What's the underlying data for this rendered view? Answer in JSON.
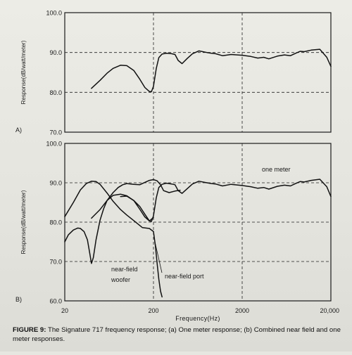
{
  "figure": {
    "caption_label": "FIGURE 9:",
    "caption_text": "The Signature 717 frequency response; (a) One meter response; (b) Combined near field and one meter responses."
  },
  "chart_data": [
    {
      "type": "line",
      "panel_label": "A)",
      "ylabel": "Response(dB/watt/meter)",
      "ylim": [
        70,
        100
      ],
      "yticks": [
        "100.0",
        "90.0",
        "80.0",
        "70.0"
      ],
      "xscale": "log",
      "xlim": [
        20,
        20000
      ],
      "grid": "dashed lines at 80, 90 dB and 200, 2000 Hz",
      "series": [
        {
          "x": [
            40,
            50,
            60,
            70,
            85,
            100,
            120,
            140,
            160,
            180,
            190,
            200,
            215,
            230,
            250,
            280,
            320,
            350,
            380,
            420,
            480,
            550,
            650,
            800,
            900,
            1000,
            1200,
            1500,
            2000,
            2500,
            3000,
            3500,
            4000,
            5000,
            6000,
            7000,
            8000,
            9000,
            10000,
            12000,
            15000,
            18000,
            20000
          ],
          "y": [
            81,
            83,
            84.8,
            86,
            86.8,
            86.7,
            85.5,
            83.3,
            81.2,
            80.2,
            80.2,
            81.5,
            86,
            88.7,
            89.6,
            89.8,
            89.7,
            89.5,
            88,
            87.2,
            88.5,
            89.7,
            90.4,
            90,
            89.8,
            89.7,
            89.2,
            89.5,
            89.3,
            89,
            88.6,
            88.8,
            88.4,
            89.1,
            89.4,
            89.2,
            89.8,
            90.3,
            90.2,
            90.6,
            90.8,
            88.8,
            86.5
          ]
        }
      ]
    },
    {
      "type": "line",
      "panel_label": "B)",
      "ylabel": "Response(dB/watt/meter)",
      "ylim": [
        60,
        100
      ],
      "yticks": [
        "100.0",
        "90.0",
        "80.0",
        "70.0",
        "60.0"
      ],
      "xscale": "log",
      "xlim": [
        20,
        20000
      ],
      "xticks": [
        "20",
        "200",
        "2000",
        "20,000"
      ],
      "xlabel": "Frequency(Hz)",
      "annotations": [
        "one meter",
        "near-field",
        "woofer",
        "near-field port"
      ],
      "series": [
        {
          "name": "one meter",
          "x": [
            85,
            100,
            120,
            140,
            160,
            180,
            190,
            200,
            215,
            230,
            250,
            280,
            320,
            350,
            380,
            420,
            480,
            550,
            650,
            800,
            900,
            1000,
            1200,
            1500,
            2000,
            2500,
            3000,
            3500,
            4000,
            5000,
            6000,
            7000,
            8000,
            9000,
            10000,
            12000,
            15000,
            18000,
            20000
          ],
          "y": [
            86.5,
            86.6,
            85.5,
            83.3,
            81.3,
            80.3,
            80.2,
            81.6,
            86.2,
            88.8,
            89.6,
            89.9,
            89.7,
            89.5,
            88,
            87.3,
            88.5,
            89.7,
            90.4,
            90,
            89.8,
            89.7,
            89.2,
            89.6,
            89.3,
            89,
            88.6,
            88.8,
            88.4,
            89.1,
            89.4,
            89.2,
            89.8,
            90.3,
            90.2,
            90.6,
            90.9,
            89,
            86.5
          ]
        },
        {
          "name": "near-field woofer",
          "x": [
            20,
            25,
            30,
            35,
            40,
            45,
            50,
            60,
            70,
            85,
            100,
            120,
            150,
            180,
            200,
            210,
            220,
            230,
            240,
            250
          ],
          "y": [
            81.4,
            85,
            88.2,
            89.8,
            90.4,
            90.3,
            89.6,
            87.4,
            85.3,
            83.2,
            81.8,
            80.4,
            78.6,
            78.4,
            77.6,
            74,
            69.5,
            65.5,
            62.5,
            61
          ]
        },
        {
          "name": "near-field port",
          "x": [
            20,
            22,
            25,
            28,
            30,
            33,
            36,
            38,
            40,
            42,
            45,
            50,
            55,
            60,
            70,
            80,
            90,
            100,
            120,
            140,
            160,
            180,
            200,
            220,
            240,
            260,
            300,
            350,
            400
          ],
          "y": [
            75,
            76.8,
            78,
            78.5,
            78.4,
            77.6,
            75.5,
            72.5,
            69.5,
            71,
            75.5,
            80.5,
            83.5,
            85.5,
            87.5,
            88.8,
            89.5,
            89.8,
            89.6,
            89.5,
            90.1,
            90.6,
            90.8,
            90.5,
            89.5,
            88,
            87.5,
            87.9,
            88.1
          ]
        },
        {
          "name": "",
          "x": [
            40,
            50,
            60,
            70,
            85,
            100,
            120,
            140,
            160,
            180,
            200
          ],
          "y": [
            81,
            83.2,
            85.5,
            86.8,
            87.1,
            86.7,
            85.5,
            84,
            82,
            80.3,
            81.2
          ]
        }
      ]
    }
  ]
}
